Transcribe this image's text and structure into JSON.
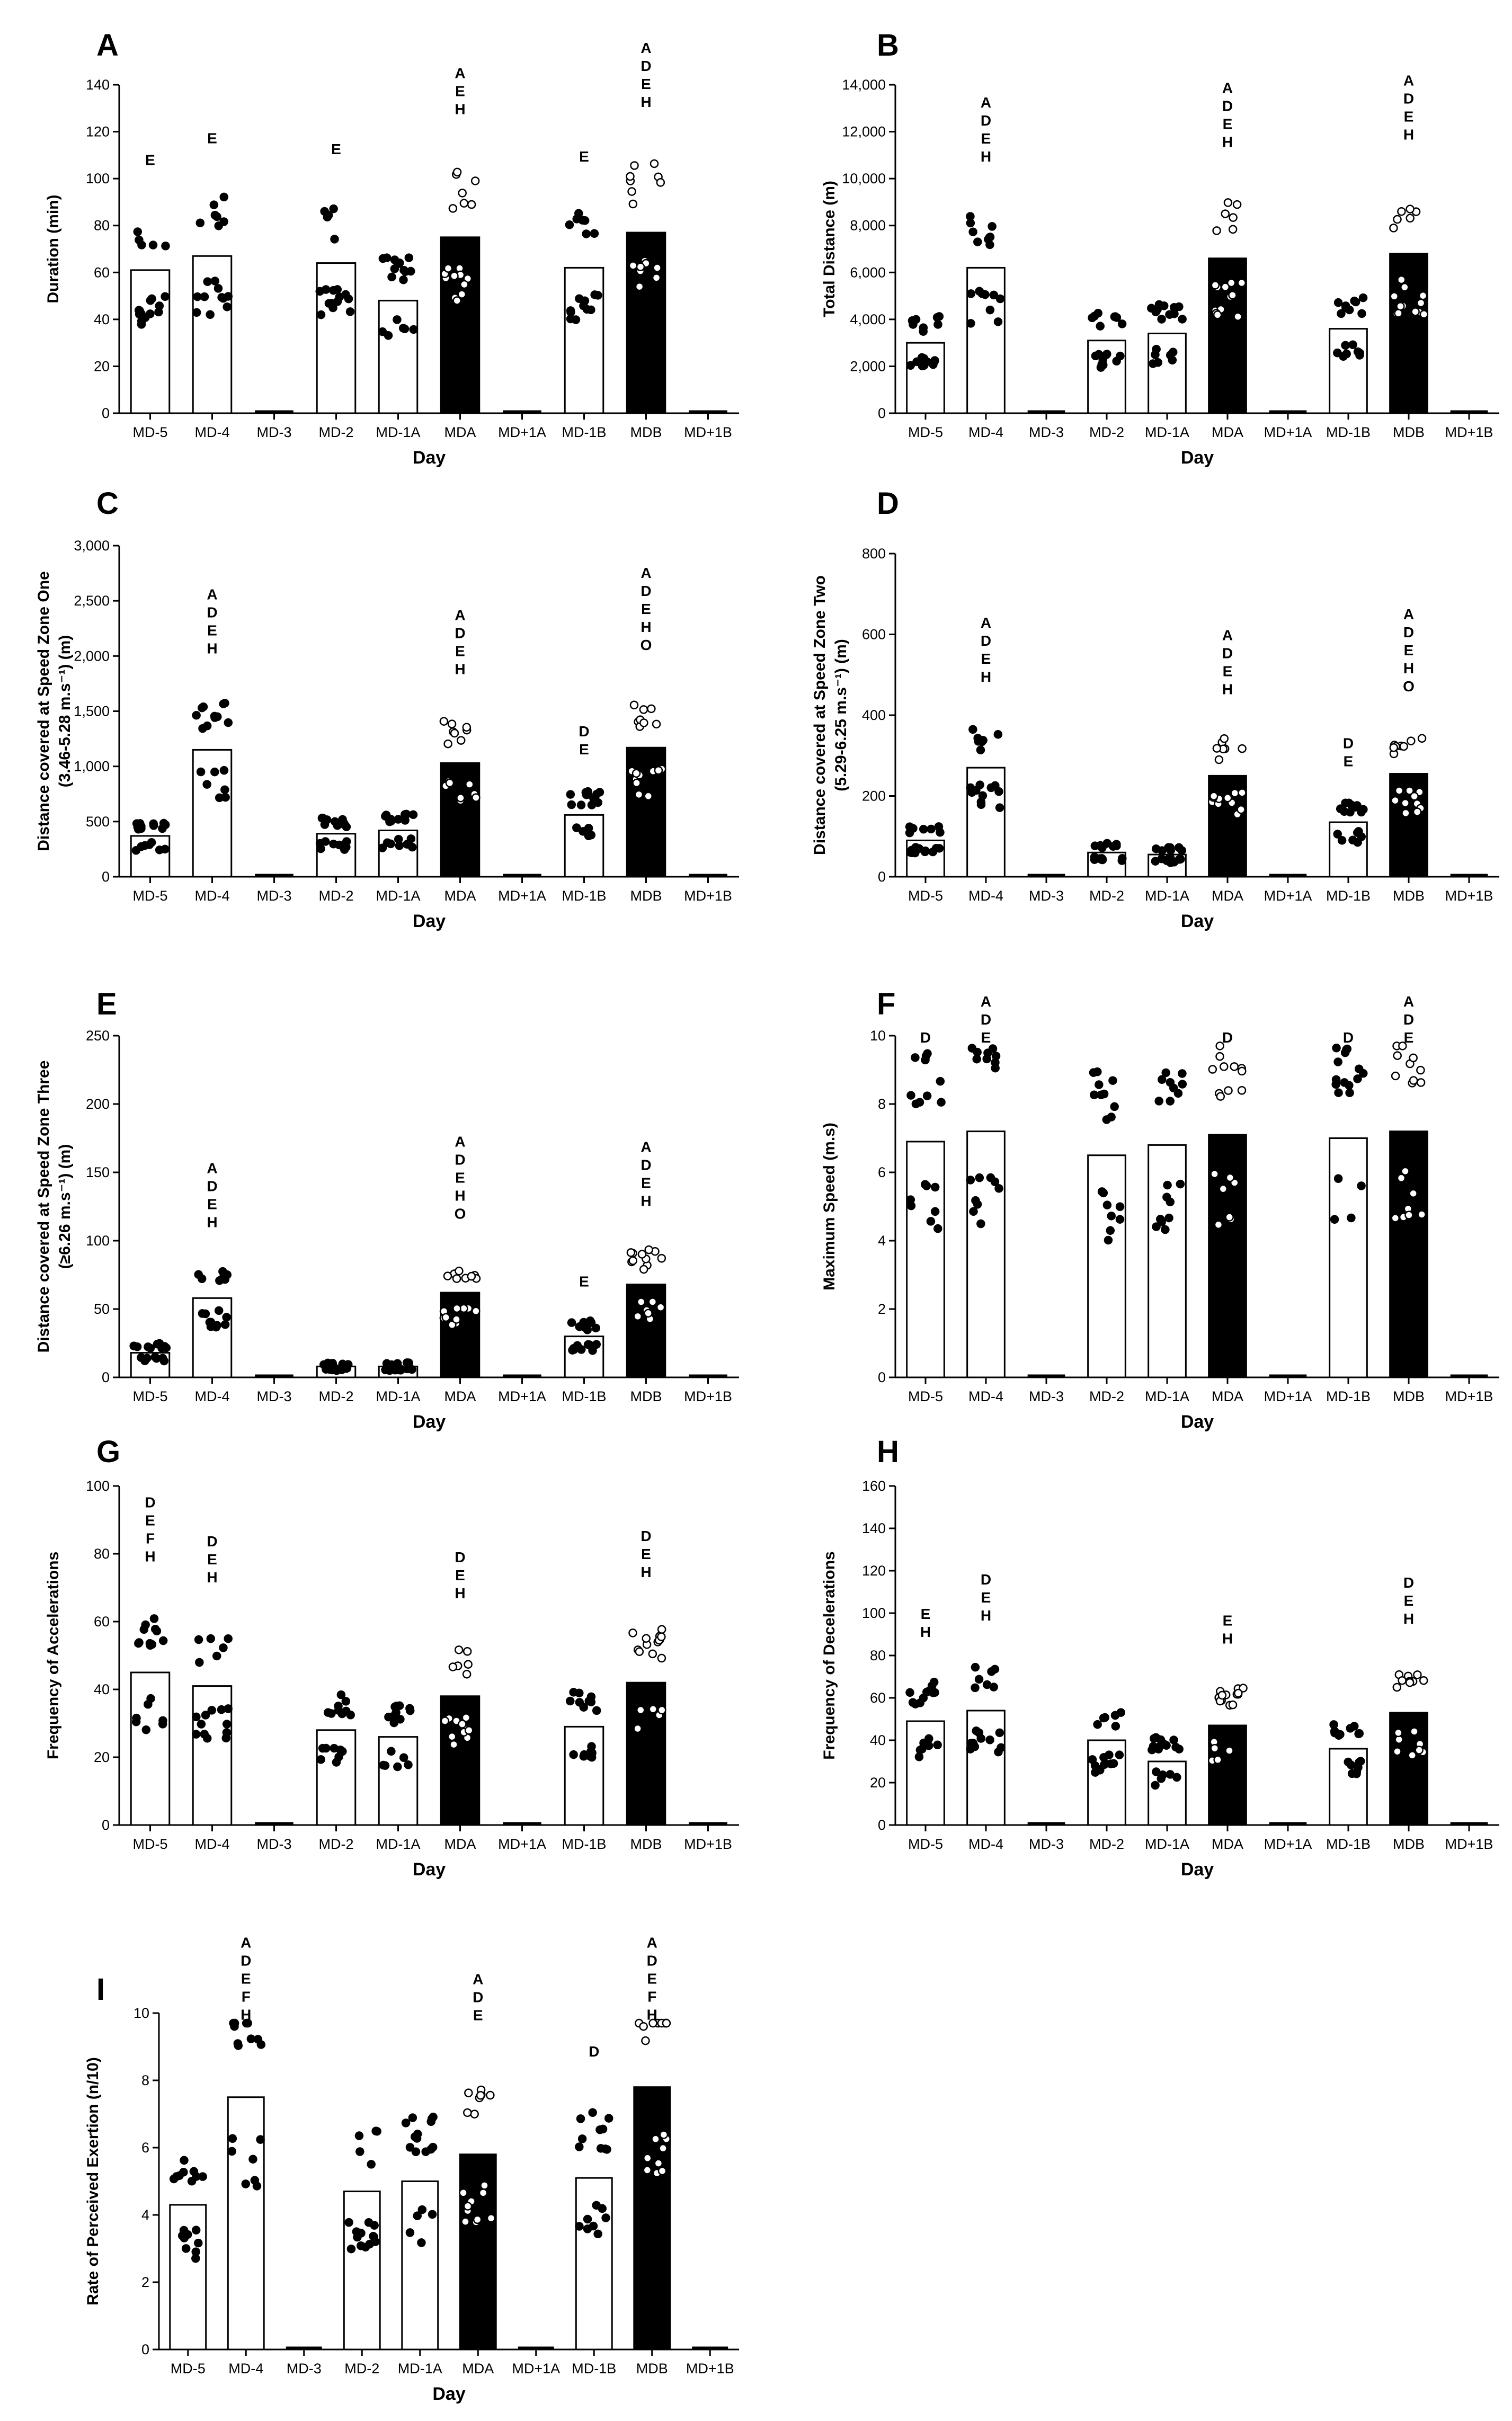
{
  "figure": {
    "categories": [
      "MD-5",
      "MD-4",
      "MD-3",
      "MD-2",
      "MD-1A",
      "MDA",
      "MD+1A",
      "MD-1B",
      "MDB",
      "MD+1B"
    ]
  },
  "chart_data": [
    {
      "panel": "A",
      "type": "bar",
      "ylabel": [
        "Duration (min)"
      ],
      "xlabel": "Day",
      "ylim": [
        0,
        140
      ],
      "yticks": [
        {
          "v": 0,
          "t": "0"
        },
        {
          "v": 20,
          "t": "20"
        },
        {
          "v": 40,
          "t": "40"
        },
        {
          "v": 60,
          "t": "60"
        },
        {
          "v": 80,
          "t": "80"
        },
        {
          "v": 100,
          "t": "100"
        },
        {
          "v": 120,
          "t": "120"
        },
        {
          "v": 140,
          "t": "140"
        }
      ],
      "values": [
        61,
        67,
        0,
        64,
        48,
        75,
        0,
        62,
        77,
        0
      ],
      "sig": [
        "E",
        "E",
        "",
        "E",
        "",
        "A E H",
        "",
        "E",
        "A D E H",
        ""
      ]
    },
    {
      "panel": "B",
      "type": "bar",
      "ylabel": [
        "Total Distance (m)"
      ],
      "xlabel": "Day",
      "ylim": [
        0,
        14000
      ],
      "yticks": [
        {
          "v": 0,
          "t": "0"
        },
        {
          "v": 2000,
          "t": "2,000"
        },
        {
          "v": 4000,
          "t": "4,000"
        },
        {
          "v": 6000,
          "t": "6,000"
        },
        {
          "v": 8000,
          "t": "8,000"
        },
        {
          "v": 10000,
          "t": "10,000"
        },
        {
          "v": 12000,
          "t": "12,000"
        },
        {
          "v": 14000,
          "t": "14,000"
        }
      ],
      "values": [
        3000,
        6200,
        0,
        3100,
        3400,
        6600,
        0,
        3600,
        6800,
        0
      ],
      "sig": [
        "",
        "A D E H",
        "",
        "",
        "",
        "A D E H",
        "",
        "",
        "A D E H",
        ""
      ]
    },
    {
      "panel": "C",
      "type": "bar",
      "ylabel": [
        "Distance covered at Speed Zone One",
        "(3.46-5.28 m.s⁻¹) (m)"
      ],
      "xlabel": "Day",
      "ylim": [
        0,
        3000
      ],
      "yticks": [
        {
          "v": 0,
          "t": "0"
        },
        {
          "v": 500,
          "t": "500"
        },
        {
          "v": 1000,
          "t": "1,000"
        },
        {
          "v": 1500,
          "t": "1,500"
        },
        {
          "v": 2000,
          "t": "2,000"
        },
        {
          "v": 2500,
          "t": "2,500"
        },
        {
          "v": 3000,
          "t": "3,000"
        }
      ],
      "values": [
        370,
        1150,
        0,
        390,
        420,
        1030,
        0,
        560,
        1170,
        0
      ],
      "sig": [
        "",
        "A D E H",
        "",
        "",
        "",
        "A D E H",
        "",
        "D E",
        "A D E H O",
        ""
      ]
    },
    {
      "panel": "D",
      "type": "bar",
      "ylabel": [
        "Distance covered at Speed Zone Two",
        "(5.29-6.25 m.s⁻¹) (m)"
      ],
      "xlabel": "Day",
      "ylim": [
        0,
        800
      ],
      "yticks": [
        {
          "v": 0,
          "t": "0"
        },
        {
          "v": 200,
          "t": "200"
        },
        {
          "v": 400,
          "t": "400"
        },
        {
          "v": 600,
          "t": "600"
        },
        {
          "v": 800,
          "t": "800"
        }
      ],
      "values": [
        90,
        270,
        0,
        60,
        55,
        250,
        0,
        135,
        255,
        0
      ],
      "sig": [
        "",
        "A D E H",
        "",
        "",
        "",
        "A D E H",
        "",
        "D E",
        "A D E H O",
        ""
      ]
    },
    {
      "panel": "E",
      "type": "bar",
      "ylabel": [
        "Distance covered at Speed Zone Three",
        "(≥6.26 m.s⁻¹) (m)"
      ],
      "xlabel": "Day",
      "ylim": [
        0,
        250
      ],
      "yticks": [
        {
          "v": 0,
          "t": "0"
        },
        {
          "v": 50,
          "t": "50"
        },
        {
          "v": 100,
          "t": "100"
        },
        {
          "v": 150,
          "t": "150"
        },
        {
          "v": 200,
          "t": "200"
        },
        {
          "v": 250,
          "t": "250"
        }
      ],
      "values": [
        18,
        58,
        0,
        8,
        8,
        62,
        0,
        30,
        68,
        0
      ],
      "sig": [
        "",
        "A D E H",
        "",
        "",
        "",
        "A D E H O",
        "",
        "E",
        "A D E H",
        ""
      ]
    },
    {
      "panel": "F",
      "type": "bar",
      "ylabel": [
        "Maximum Speed (m.s)"
      ],
      "xlabel": "Day",
      "ylim": [
        0,
        10
      ],
      "yticks": [
        {
          "v": 0,
          "t": "0"
        },
        {
          "v": 2,
          "t": "2"
        },
        {
          "v": 4,
          "t": "4"
        },
        {
          "v": 6,
          "t": "6"
        },
        {
          "v": 8,
          "t": "8"
        },
        {
          "v": 10,
          "t": "10"
        }
      ],
      "values": [
        6.9,
        7.2,
        0,
        6.5,
        6.8,
        7.1,
        0,
        7.0,
        7.2,
        0
      ],
      "sig": [
        "D",
        "A D E",
        "",
        "",
        "",
        "D",
        "",
        "D",
        "A D E",
        ""
      ]
    },
    {
      "panel": "G",
      "type": "bar",
      "ylabel": [
        "Frequency of Accelerations"
      ],
      "xlabel": "Day",
      "ylim": [
        0,
        100
      ],
      "yticks": [
        {
          "v": 0,
          "t": "0"
        },
        {
          "v": 20,
          "t": "20"
        },
        {
          "v": 40,
          "t": "40"
        },
        {
          "v": 60,
          "t": "60"
        },
        {
          "v": 80,
          "t": "80"
        },
        {
          "v": 100,
          "t": "100"
        }
      ],
      "values": [
        45,
        41,
        0,
        28,
        26,
        38,
        0,
        29,
        42,
        0
      ],
      "sig": [
        "D E F H",
        "D E H",
        "",
        "",
        "",
        "D E H",
        "",
        "",
        "D E H",
        ""
      ]
    },
    {
      "panel": "H",
      "type": "bar",
      "ylabel": [
        "Frequency of Decelerations"
      ],
      "xlabel": "Day",
      "ylim": [
        0,
        160
      ],
      "yticks": [
        {
          "v": 0,
          "t": "0"
        },
        {
          "v": 20,
          "t": "20"
        },
        {
          "v": 40,
          "t": "40"
        },
        {
          "v": 60,
          "t": "60"
        },
        {
          "v": 80,
          "t": "80"
        },
        {
          "v": 100,
          "t": "100"
        },
        {
          "v": 120,
          "t": "120"
        },
        {
          "v": 140,
          "t": "140"
        },
        {
          "v": 160,
          "t": "160"
        }
      ],
      "values": [
        49,
        54,
        0,
        40,
        30,
        47,
        0,
        36,
        53,
        0
      ],
      "sig": [
        "E H",
        "D E H",
        "",
        "",
        "",
        "E H",
        "",
        "",
        "D E H",
        ""
      ]
    },
    {
      "panel": "I",
      "type": "bar",
      "ylabel": [
        "Rate of Perceived Exertion (n/10)"
      ],
      "xlabel": "Day",
      "ylim": [
        0,
        10
      ],
      "yticks": [
        {
          "v": 0,
          "t": "0"
        },
        {
          "v": 2,
          "t": "2"
        },
        {
          "v": 4,
          "t": "4"
        },
        {
          "v": 6,
          "t": "6"
        },
        {
          "v": 8,
          "t": "8"
        },
        {
          "v": 10,
          "t": "10"
        }
      ],
      "values": [
        4.3,
        7.5,
        0,
        4.7,
        5.0,
        5.8,
        0,
        5.1,
        7.8,
        0
      ],
      "sig": [
        "",
        "A D E F H",
        "",
        "",
        "",
        "A D E",
        "",
        "D",
        "A D E F H",
        ""
      ]
    }
  ]
}
